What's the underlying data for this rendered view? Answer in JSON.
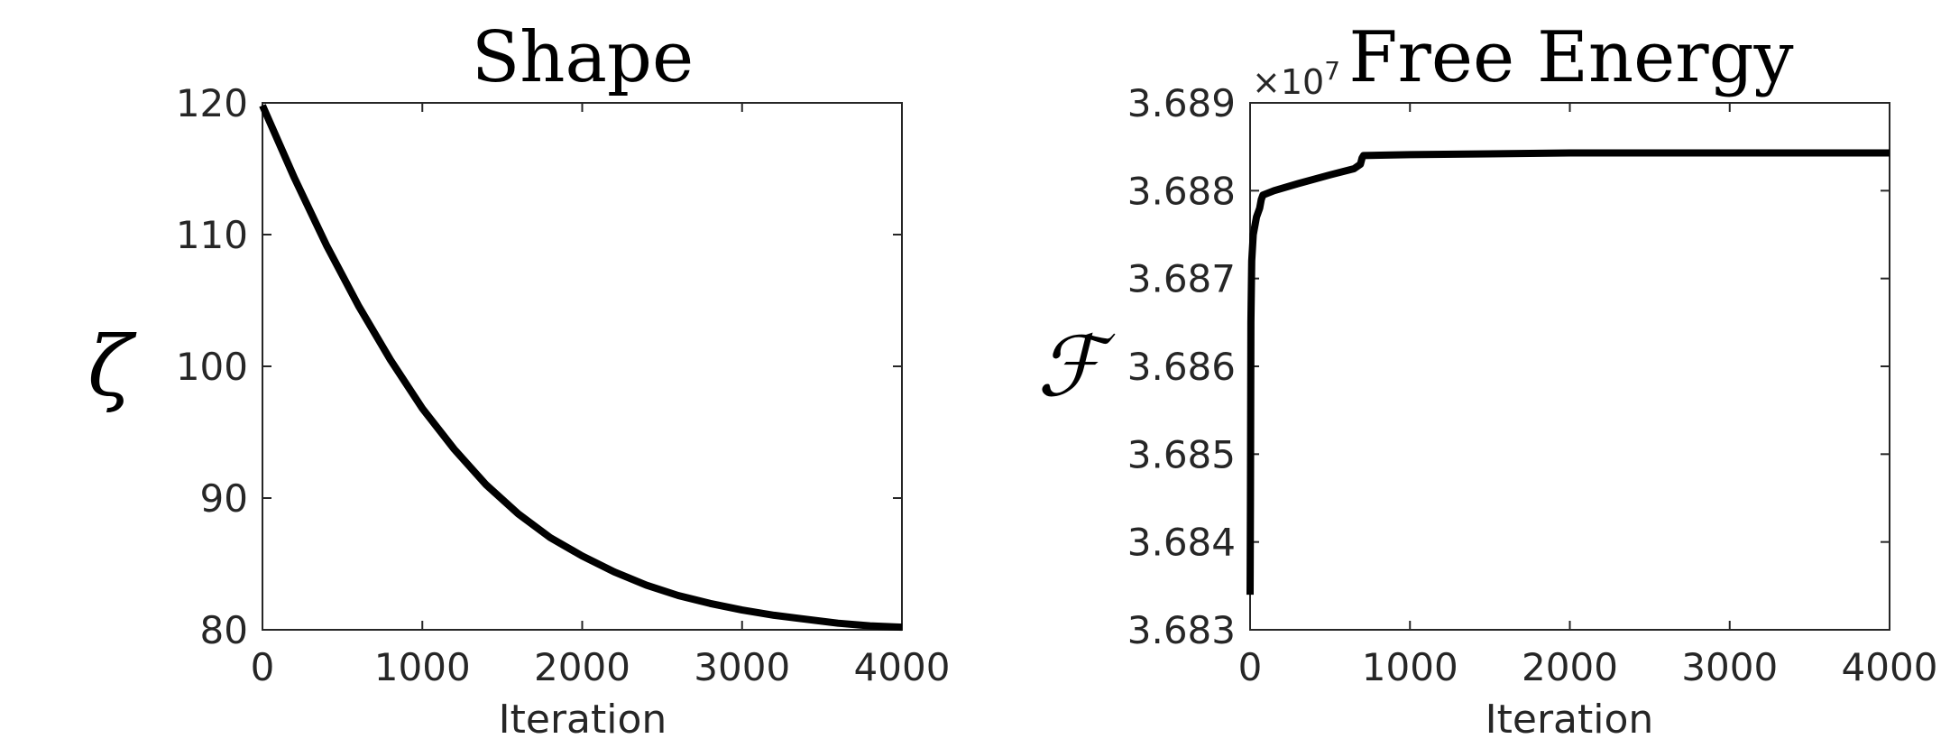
{
  "chart_data": [
    {
      "type": "line",
      "title": "Shape",
      "xlabel": "Iteration",
      "ylabel": "ζ",
      "xlim": [
        0,
        4000
      ],
      "ylim": [
        80,
        120
      ],
      "xticks": [
        0,
        1000,
        2000,
        3000,
        4000
      ],
      "yticks": [
        80,
        90,
        100,
        110,
        120
      ],
      "xtick_labels": [
        "0",
        "1000",
        "2000",
        "3000",
        "4000"
      ],
      "ytick_labels": [
        "80",
        "90",
        "100",
        "110",
        "120"
      ],
      "grid": false,
      "line_color": "#000000",
      "series": [
        {
          "x": [
            0,
            200,
            400,
            600,
            800,
            1000,
            1200,
            1400,
            1600,
            1800,
            2000,
            2200,
            2400,
            2600,
            2800,
            3000,
            3200,
            3400,
            3600,
            3800,
            4000
          ],
          "y": [
            119.8,
            114.3,
            109.2,
            104.6,
            100.5,
            96.8,
            93.7,
            91.0,
            88.8,
            87.0,
            85.6,
            84.4,
            83.4,
            82.6,
            82.0,
            81.5,
            81.1,
            80.8,
            80.5,
            80.3,
            80.2
          ]
        }
      ]
    },
    {
      "type": "line",
      "title": "Free Energy",
      "xlabel": "Iteration",
      "ylabel": "ℱ",
      "axis_multiplier_base": "×10",
      "axis_multiplier_exponent": "7",
      "xlim": [
        0,
        4000
      ],
      "ylim": [
        3.683,
        3.689
      ],
      "xticks": [
        0,
        1000,
        2000,
        3000,
        4000
      ],
      "yticks": [
        3.683,
        3.684,
        3.685,
        3.686,
        3.687,
        3.688,
        3.689
      ],
      "xtick_labels": [
        "0",
        "1000",
        "2000",
        "3000",
        "4000"
      ],
      "ytick_labels": [
        "3.683",
        "3.684",
        "3.685",
        "3.686",
        "3.687",
        "3.688",
        "3.689"
      ],
      "grid": false,
      "line_color": "#000000",
      "series": [
        {
          "x": [
            0,
            2,
            5,
            10,
            20,
            40,
            60,
            70,
            80,
            150,
            300,
            500,
            650,
            690,
            700,
            710,
            1000,
            1500,
            2000,
            3000,
            4000
          ],
          "y": [
            3.6834,
            3.6845,
            3.6865,
            3.6872,
            3.6875,
            3.6877,
            3.6878,
            3.6879,
            3.68795,
            3.688,
            3.68808,
            3.68818,
            3.68825,
            3.6883,
            3.68837,
            3.6884,
            3.68841,
            3.68842,
            3.68843,
            3.68843,
            3.68843
          ]
        }
      ]
    }
  ]
}
